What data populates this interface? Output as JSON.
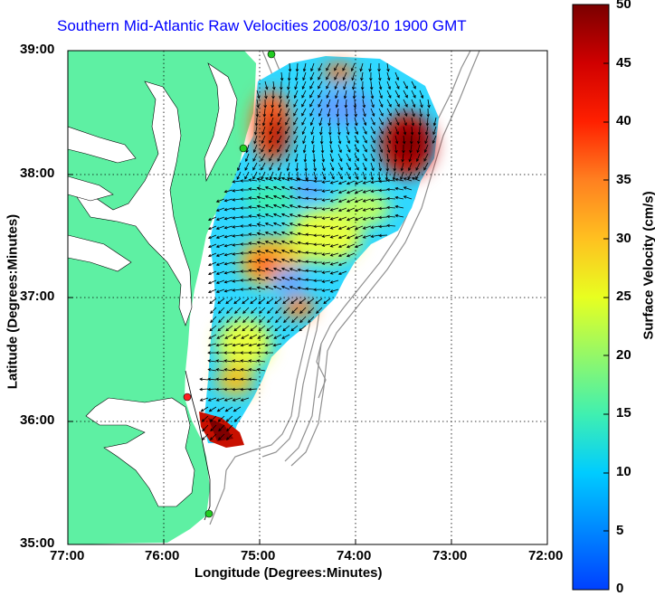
{
  "title": "Southern Mid-Atlantic Raw Velocities 2008/03/10 1900 GMT",
  "xlabel": "Longitude (Degrees:Minutes)",
  "ylabel": "Latitude (Degrees:Minutes)",
  "colorbar": {
    "label": "Surface Velocity (cm/s)",
    "ticks": [
      "0",
      "5",
      "10",
      "15",
      "20",
      "25",
      "30",
      "35",
      "40",
      "45",
      "50"
    ],
    "min": 0,
    "max": 50
  },
  "x_ticks": [
    "77:00",
    "76:00",
    "75:00",
    "74:00",
    "73:00",
    "72:00"
  ],
  "y_ticks": [
    "39:00",
    "38:00",
    "37:00",
    "36:00",
    "35:00"
  ],
  "colors": {
    "land": "#5ef0a3",
    "title": "#0000ff",
    "vector": "#000000",
    "bathymetry": "#909090",
    "station": "#22cc22",
    "station_alt": "#ff2020"
  }
}
